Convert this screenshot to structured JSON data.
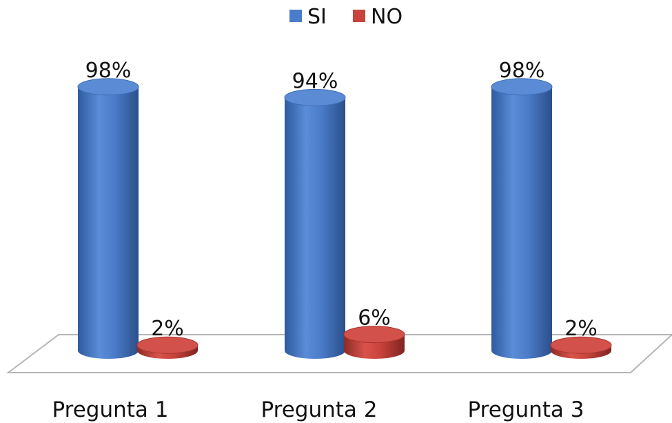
{
  "chart_data": {
    "type": "bar",
    "categories": [
      "Pregunta 1",
      "Pregunta 2",
      "Pregunta 3"
    ],
    "series": [
      {
        "name": "SI",
        "values": [
          98,
          94,
          98
        ],
        "labels": [
          "98%",
          "94%",
          "98%"
        ],
        "color": "#4A7CC9"
      },
      {
        "name": "NO",
        "values": [
          2,
          6,
          2
        ],
        "labels": [
          "2%",
          "6%",
          "2%"
        ],
        "color": "#C8433C"
      }
    ],
    "ylim": [
      0,
      100
    ],
    "legend": "top-center",
    "grid": false,
    "style": "3d-cylinder"
  }
}
